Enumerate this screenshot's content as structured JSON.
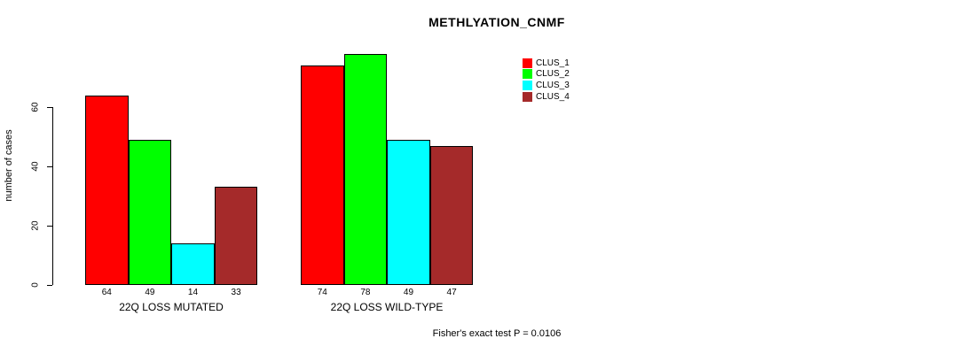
{
  "chart_data": {
    "type": "bar",
    "title": "METHLYATION_CNMF",
    "ylabel": "number of cases",
    "xlabel": "",
    "groups": [
      "22Q LOSS MUTATED",
      "22Q LOSS WILD-TYPE"
    ],
    "series": [
      {
        "name": "CLUS_1",
        "color": "#ff0000",
        "values": [
          64,
          74
        ]
      },
      {
        "name": "CLUS_2",
        "color": "#00ff00",
        "values": [
          49,
          78
        ]
      },
      {
        "name": "CLUS_3",
        "color": "#00ffff",
        "values": [
          14,
          49
        ]
      },
      {
        "name": "CLUS_4",
        "color": "#a52a2a",
        "values": [
          33,
          47
        ]
      }
    ],
    "yticks": [
      0,
      20,
      40,
      60
    ],
    "ylim": [
      0,
      78
    ],
    "grid": false,
    "bar_value_labels_shown": true,
    "legend_position": "top-right",
    "legend_entries": [
      "CLUS_1",
      "CLUS_2",
      "CLUS_3",
      "CLUS_4"
    ],
    "annotation": "Fisher's exact test P = 0.0106",
    "bar_border_color": "#000000",
    "background_color": "#ffffff"
  }
}
